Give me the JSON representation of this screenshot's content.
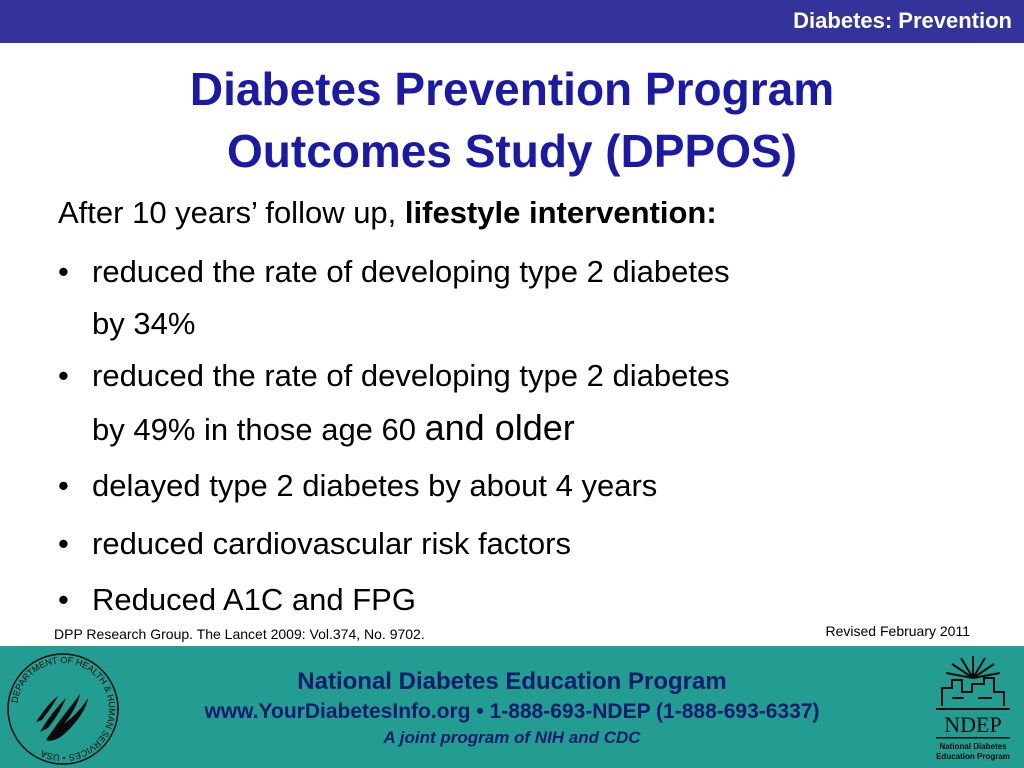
{
  "header": {
    "section_label": "Diabetes: Prevention"
  },
  "slide": {
    "title_line1": "Diabetes Prevention Program",
    "title_line2": "Outcomes Study (DPPOS)",
    "intro_prefix": "After 10 years’ follow up, ",
    "intro_bold": "lifestyle intervention:",
    "bullet_char": "•",
    "bullets": [
      {
        "line1": "reduced the rate of developing type 2 diabetes",
        "line2": "by 34%"
      },
      {
        "line1": "reduced the rate of developing type 2 diabetes",
        "line2a": "by 49% in those age 60 ",
        "line2b": "and older"
      },
      {
        "line1": "delayed type 2 diabetes by about 4 years"
      },
      {
        "line1": "reduced cardiovascular risk factors"
      },
      {
        "line1": "Reduced A1C and FPG"
      }
    ],
    "citation": "DPP Research Group. The Lancet 2009: Vol.374, No. 9702.",
    "revised": "Revised February 2011"
  },
  "footer": {
    "program_name": "National Diabetes Education Program",
    "contact": "www.YourDiabetesInfo.org • 1-888-693-NDEP (1-888-693-6337)",
    "tagline": "A joint program of NIH and CDC",
    "hhs_seal_text": "DEPARTMENT OF HEALTH & HUMAN SERVICES • USA",
    "ndep_logo_text": "NDEP",
    "ndep_logo_caption_line1": "National Diabetes",
    "ndep_logo_caption_line2": "Education Program"
  },
  "colors": {
    "top_bar": "#333399",
    "title": "#1a1aa6",
    "footer_bg": "#239c91",
    "footer_text": "#0a1c6e"
  }
}
